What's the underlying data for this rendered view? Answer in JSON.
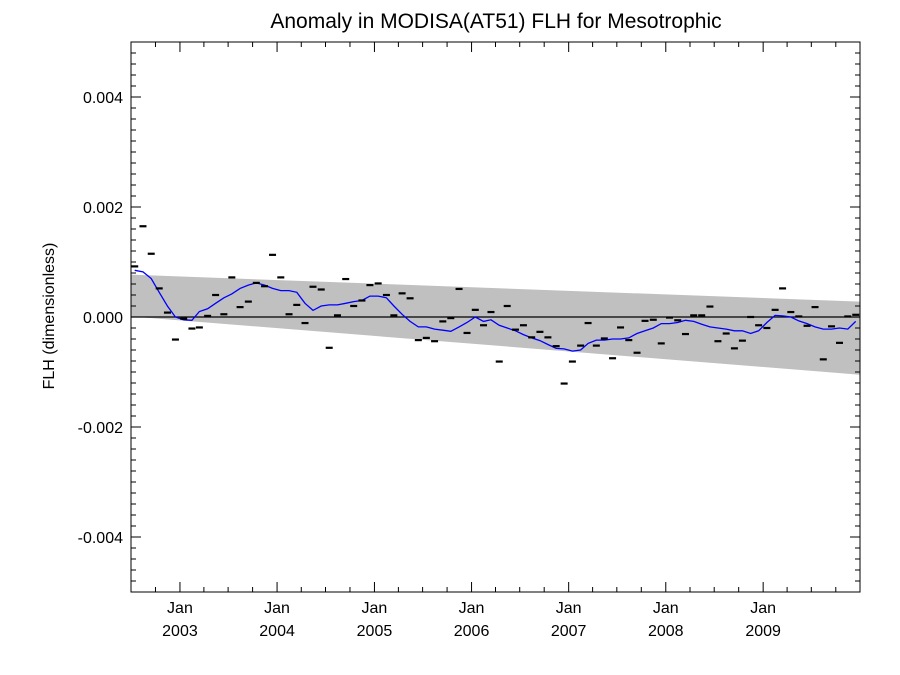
{
  "chart_data": {
    "type": "scatter",
    "title": "Anomaly in MODISA(AT51) FLH for Mesotrophic",
    "xlabel": "",
    "ylabel": "FLH (dimensionless)",
    "ylim": [
      -0.005,
      0.005
    ],
    "xlim": [
      "2002-07-01",
      "2009-12-31"
    ],
    "grid": false,
    "yticks": [
      {
        "value": 0.004,
        "label": "0.004"
      },
      {
        "value": 0.002,
        "label": "0.002"
      },
      {
        "value": 0.0,
        "label": "0.000"
      },
      {
        "value": -0.002,
        "label": "-0.002"
      },
      {
        "value": -0.004,
        "label": "-0.004"
      }
    ],
    "xticks": [
      {
        "date": "2003-01-01",
        "month": "Jan",
        "year": "2003"
      },
      {
        "date": "2004-01-01",
        "month": "Jan",
        "year": "2004"
      },
      {
        "date": "2005-01-01",
        "month": "Jan",
        "year": "2005"
      },
      {
        "date": "2006-01-01",
        "month": "Jan",
        "year": "2006"
      },
      {
        "date": "2007-01-01",
        "month": "Jan",
        "year": "2007"
      },
      {
        "date": "2008-01-01",
        "month": "Jan",
        "year": "2008"
      },
      {
        "date": "2009-01-01",
        "month": "Jan",
        "year": "2009"
      }
    ],
    "band": {
      "start": {
        "x": "2002-07-01",
        "upper": 0.00077,
        "lower": 1e-05
      },
      "end": {
        "x": "2009-12-31",
        "upper": 0.00028,
        "lower": -0.00105
      },
      "color": "#c0c0c0"
    },
    "series": [
      {
        "type": "points",
        "color": "#000000",
        "x": [
          "2002-07",
          "2002-08",
          "2002-09",
          "2002-10",
          "2002-11",
          "2002-12",
          "2003-01",
          "2003-02",
          "2003-03",
          "2003-04",
          "2003-05",
          "2003-06",
          "2003-07",
          "2003-08",
          "2003-09",
          "2003-10",
          "2003-11",
          "2003-12",
          "2004-01",
          "2004-02",
          "2004-03",
          "2004-04",
          "2004-05",
          "2004-06",
          "2004-07",
          "2004-08",
          "2004-09",
          "2004-10",
          "2004-11",
          "2004-12",
          "2005-01",
          "2005-02",
          "2005-03",
          "2005-04",
          "2005-05",
          "2005-06",
          "2005-07",
          "2005-08",
          "2005-09",
          "2005-10",
          "2005-11",
          "2005-12",
          "2006-01",
          "2006-02",
          "2006-03",
          "2006-04",
          "2006-05",
          "2006-06",
          "2006-07",
          "2006-08",
          "2006-09",
          "2006-10",
          "2006-11",
          "2006-12",
          "2007-01",
          "2007-02",
          "2007-03",
          "2007-04",
          "2007-05",
          "2007-06",
          "2007-07",
          "2007-08",
          "2007-09",
          "2007-10",
          "2007-11",
          "2007-12",
          "2008-01",
          "2008-02",
          "2008-03",
          "2008-04",
          "2008-05",
          "2008-06",
          "2008-07",
          "2008-08",
          "2008-09",
          "2008-10",
          "2008-11",
          "2008-12",
          "2009-01",
          "2009-02",
          "2009-03",
          "2009-04",
          "2009-05",
          "2009-06",
          "2009-07",
          "2009-08",
          "2009-09",
          "2009-10",
          "2009-11",
          "2009-12"
        ],
        "values": [
          0.00092,
          0.00165,
          0.00115,
          0.00052,
          8e-05,
          -0.00041,
          -3e-05,
          -0.00021,
          -0.00019,
          2e-05,
          0.0004,
          5e-05,
          0.00072,
          0.00018,
          0.00028,
          0.00062,
          0.00056,
          0.00113,
          0.00072,
          5e-05,
          0.00022,
          -0.00011,
          0.00055,
          0.0005,
          -0.00056,
          3e-05,
          0.00069,
          0.0002,
          0.0003,
          0.00058,
          0.00061,
          0.0004,
          3e-05,
          0.00043,
          0.00034,
          -0.00042,
          -0.00038,
          -0.00044,
          -8e-05,
          -2e-05,
          0.00051,
          -0.00029,
          0.00013,
          -0.00015,
          9e-05,
          -0.00081,
          0.0002,
          -0.00023,
          -0.00015,
          -0.00037,
          -0.00027,
          -0.00037,
          -0.00053,
          -0.00121,
          -0.00081,
          -0.00052,
          -0.00011,
          -0.00052,
          -0.00039,
          -0.00075,
          -0.00019,
          -0.00042,
          -0.00065,
          -7e-05,
          -5e-05,
          -0.00048,
          -1e-05,
          -6e-05,
          -0.00031,
          3e-05,
          3e-05,
          0.00019,
          -0.00044,
          -0.0003,
          -0.00057,
          -0.00043,
          0.0,
          -0.00015,
          -0.0002,
          0.00013,
          0.00052,
          9e-05,
          1e-05,
          -0.00016,
          0.00018,
          -0.00077,
          -0.00017,
          -0.00047,
          1e-05,
          4e-05
        ]
      },
      {
        "type": "line",
        "color": "#0000ff",
        "x": [
          "2002-07",
          "2002-08",
          "2002-09",
          "2002-10",
          "2002-11",
          "2002-12",
          "2003-01",
          "2003-02",
          "2003-03",
          "2003-04",
          "2003-05",
          "2003-06",
          "2003-07",
          "2003-08",
          "2003-09",
          "2003-10",
          "2003-11",
          "2003-12",
          "2004-01",
          "2004-02",
          "2004-03",
          "2004-04",
          "2004-05",
          "2004-06",
          "2004-07",
          "2004-08",
          "2004-09",
          "2004-10",
          "2004-11",
          "2004-12",
          "2005-01",
          "2005-02",
          "2005-03",
          "2005-04",
          "2005-05",
          "2005-06",
          "2005-07",
          "2005-08",
          "2005-09",
          "2005-10",
          "2005-11",
          "2005-12",
          "2006-01",
          "2006-02",
          "2006-03",
          "2006-04",
          "2006-05",
          "2006-06",
          "2006-07",
          "2006-08",
          "2006-09",
          "2006-10",
          "2006-11",
          "2006-12",
          "2007-01",
          "2007-02",
          "2007-03",
          "2007-04",
          "2007-05",
          "2007-06",
          "2007-07",
          "2007-08",
          "2007-09",
          "2007-10",
          "2007-11",
          "2007-12",
          "2008-01",
          "2008-02",
          "2008-03",
          "2008-04",
          "2008-05",
          "2008-06",
          "2008-07",
          "2008-08",
          "2008-09",
          "2008-10",
          "2008-11",
          "2008-12",
          "2009-01",
          "2009-02",
          "2009-03",
          "2009-04",
          "2009-05",
          "2009-06",
          "2009-07",
          "2009-08",
          "2009-09",
          "2009-10",
          "2009-11",
          "2009-12"
        ],
        "values": [
          0.00085,
          0.00082,
          0.0007,
          0.00045,
          0.0002,
          0.0,
          -5e-05,
          -6e-05,
          0.0001,
          0.00015,
          0.00025,
          0.00035,
          0.00042,
          0.00052,
          0.00058,
          0.00062,
          0.00058,
          0.00052,
          0.00048,
          0.00048,
          0.00045,
          0.00025,
          0.00012,
          0.0002,
          0.00022,
          0.00022,
          0.00025,
          0.00028,
          0.0003,
          0.00038,
          0.00038,
          0.00035,
          0.0002,
          5e-05,
          -8e-05,
          -0.00018,
          -0.00018,
          -0.00022,
          -0.00024,
          -0.00026,
          -0.00018,
          -0.0001,
          0.0,
          -8e-05,
          -5e-05,
          -0.00015,
          -0.0002,
          -0.00025,
          -0.00032,
          -0.00038,
          -0.00043,
          -0.0005,
          -0.00057,
          -0.00058,
          -0.00062,
          -0.0006,
          -0.00048,
          -0.00042,
          -0.00042,
          -0.0004,
          -0.0004,
          -0.00038,
          -0.0003,
          -0.00025,
          -0.0002,
          -0.00012,
          -0.00012,
          -0.0001,
          -6e-05,
          -8e-05,
          -0.00013,
          -0.00018,
          -0.0002,
          -0.00022,
          -0.00025,
          -0.00025,
          -0.0003,
          -0.00025,
          -0.0001,
          3e-05,
          2e-05,
          0.0,
          -7e-05,
          -0.00012,
          -0.00018,
          -0.00022,
          -0.00022,
          -0.0002,
          -0.00022,
          -8e-05
        ]
      }
    ],
    "zero_line": 0.0
  }
}
